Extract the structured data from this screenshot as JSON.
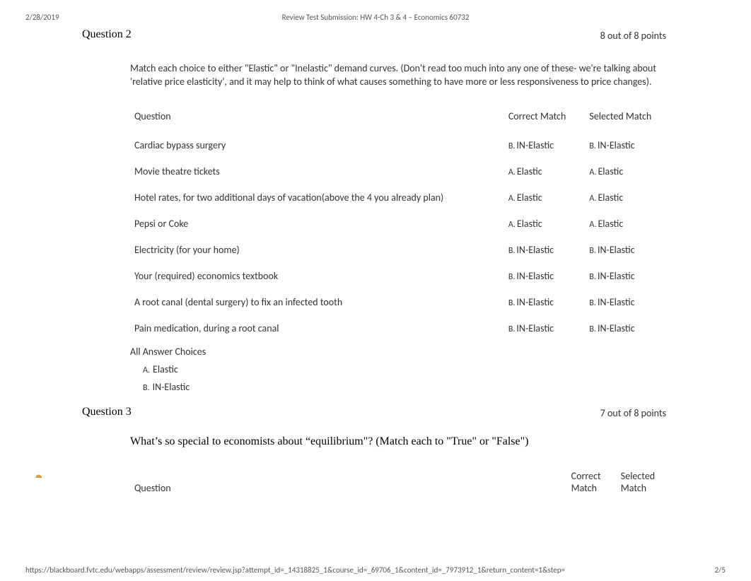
{
  "header": {
    "date": "2/28/2019",
    "title": "Review Test Submission: HW 4-Ch 3 & 4 – Economics 60732"
  },
  "footer": {
    "url": "https://blackboard.fvtc.edu/webapps/assessment/review/review.jsp?attempt_id=_14318825_1&course_id=_69706_1&content_id=_7973912_1&return_content=1&step=",
    "pagenum": "2/5"
  },
  "q2": {
    "title": "Question 2",
    "score": "8 out of 8 points",
    "prompt": "Match each choice to either \"Elastic\" or \"Inelastic\" demand curves. (Don't read too much into any one of these- we're talking about 'relative price elasticity', and it may help to think of what causes something to have more or less responsiveness to price changes).",
    "headers": {
      "question": "Question",
      "correct": "Correct Match",
      "selected": "Selected Match"
    },
    "rows": [
      {
        "q": "Cardiac bypass surgery",
        "cL": "B.",
        "c": "IN-Elastic",
        "sL": "B.",
        "s": "IN-Elastic"
      },
      {
        "q": "Movie theatre tickets",
        "cL": "A.",
        "c": "Elastic",
        "sL": "A.",
        "s": "Elastic"
      },
      {
        "q": "Hotel rates, for two additional days of vacation(above the 4 you already plan)",
        "cL": "A.",
        "c": "Elastic",
        "sL": "A.",
        "s": "Elastic"
      },
      {
        "q": "Pepsi or Coke",
        "cL": "A.",
        "c": "Elastic",
        "sL": "A.",
        "s": "Elastic"
      },
      {
        "q": "Electricity (for your home)",
        "cL": "B.",
        "c": "IN-Elastic",
        "sL": "B.",
        "s": "IN-Elastic"
      },
      {
        "q": "Your (required) economics textbook",
        "cL": "B.",
        "c": "IN-Elastic",
        "sL": "B.",
        "s": "IN-Elastic"
      },
      {
        "q": "A root canal (dental surgery) to fix an infected tooth",
        "cL": "B.",
        "c": "IN-Elastic",
        "sL": "B.",
        "s": "IN-Elastic"
      },
      {
        "q": "Pain medication, during a root canal",
        "cL": "B.",
        "c": "IN-Elastic",
        "sL": "B.",
        "s": "IN-Elastic"
      }
    ],
    "allChoicesLabel": "All Answer Choices",
    "choices": [
      {
        "letter": "A.",
        "text": "Elastic"
      },
      {
        "letter": "B.",
        "text": "IN-Elastic"
      }
    ]
  },
  "q3": {
    "statusGlyph": "⯊",
    "title": "Question 3",
    "score": "7 out of 8 points",
    "prompt": "What’s so special to economists about “equilibrium\"?   (Match each to \"True\" or \"False\")",
    "headers": {
      "question": "Question",
      "correct": "Correct Match",
      "selected": "Selected Match"
    }
  },
  "colors": {
    "statusIcon": "#e29b3a"
  }
}
